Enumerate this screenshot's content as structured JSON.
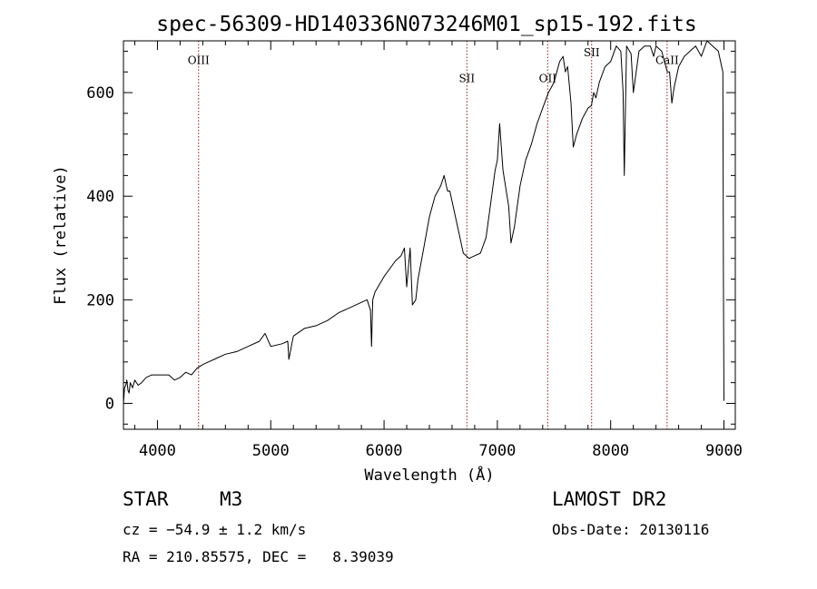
{
  "chart_data": {
    "type": "line",
    "title": "spec-56309-HD140336N073246M01_sp15-192.fits",
    "xlabel": "Wavelength (Å)",
    "ylabel": "Flux (relative)",
    "xlim": [
      3700,
      9100
    ],
    "ylim": [
      -50,
      700
    ],
    "x_ticks": [
      4000,
      5000,
      6000,
      7000,
      8000,
      9000
    ],
    "y_ticks": [
      0,
      200,
      400,
      600
    ],
    "grid": false,
    "series": [
      {
        "color": "#000000",
        "x": [
          3700,
          3710,
          3720,
          3730,
          3740,
          3750,
          3760,
          3780,
          3800,
          3830,
          3860,
          3900,
          3950,
          4000,
          4050,
          4100,
          4150,
          4200,
          4250,
          4300,
          4350,
          4400,
          4450,
          4500,
          4600,
          4700,
          4800,
          4900,
          4950,
          5000,
          5100,
          5150,
          5160,
          5200,
          5300,
          5400,
          5500,
          5600,
          5700,
          5800,
          5850,
          5880,
          5890,
          5900,
          5920,
          6000,
          6100,
          6150,
          6180,
          6200,
          6230,
          6250,
          6280,
          6300,
          6350,
          6400,
          6450,
          6500,
          6530,
          6550,
          6560,
          6580,
          6600,
          6650,
          6700,
          6750,
          6800,
          6850,
          6900,
          6950,
          6980,
          7000,
          7020,
          7050,
          7100,
          7120,
          7150,
          7200,
          7250,
          7300,
          7350,
          7400,
          7450,
          7500,
          7550,
          7580,
          7600,
          7620,
          7650,
          7670,
          7700,
          7750,
          7800,
          7830,
          7850,
          7870,
          7900,
          7950,
          8000,
          8050,
          8090,
          8110,
          8120,
          8140,
          8180,
          8200,
          8250,
          8300,
          8350,
          8380,
          8400,
          8450,
          8500,
          8520,
          8540,
          8560,
          8600,
          8650,
          8700,
          8750,
          8800,
          8850,
          8900,
          8950,
          8980,
          8990,
          8995,
          9000
        ],
        "y": [
          0,
          30,
          35,
          45,
          25,
          20,
          40,
          30,
          45,
          35,
          40,
          50,
          55,
          55,
          55,
          55,
          45,
          50,
          60,
          55,
          68,
          75,
          80,
          85,
          95,
          100,
          110,
          120,
          135,
          110,
          115,
          120,
          85,
          130,
          145,
          150,
          160,
          175,
          185,
          195,
          200,
          180,
          110,
          200,
          215,
          245,
          275,
          285,
          300,
          225,
          300,
          190,
          200,
          240,
          300,
          360,
          400,
          420,
          440,
          420,
          410,
          410,
          390,
          340,
          290,
          280,
          285,
          290,
          320,
          400,
          450,
          470,
          540,
          450,
          380,
          310,
          340,
          420,
          470,
          500,
          540,
          570,
          600,
          620,
          660,
          670,
          640,
          650,
          580,
          495,
          520,
          550,
          570,
          575,
          600,
          590,
          620,
          650,
          660,
          690,
          680,
          600,
          440,
          690,
          675,
          600,
          680,
          690,
          690,
          670,
          690,
          680,
          640,
          640,
          580,
          610,
          650,
          670,
          680,
          690,
          670,
          700,
          690,
          680,
          650,
          640,
          250,
          5
        ]
      }
    ],
    "annotations": [
      {
        "label": "OIII",
        "x": 4363,
        "label_y": 655
      },
      {
        "label": "SII",
        "x": 6731,
        "label_y": 620
      },
      {
        "label": "OII",
        "x": 7444,
        "label_y": 620
      },
      {
        "label": "SII",
        "x": 7832,
        "label_y": 670
      },
      {
        "label": "CaII",
        "x": 8498,
        "label_y": 655
      }
    ],
    "annotation_color": "#8b1a1a"
  },
  "info": {
    "object_class": "STAR",
    "subclass": "M3",
    "survey": "LAMOST DR2",
    "cz": "cz = −54.9 ± 1.2 km/s",
    "obs_date": "Obs-Date: 20130116",
    "radec": "RA = 210.85575, DEC =   8.39039"
  }
}
